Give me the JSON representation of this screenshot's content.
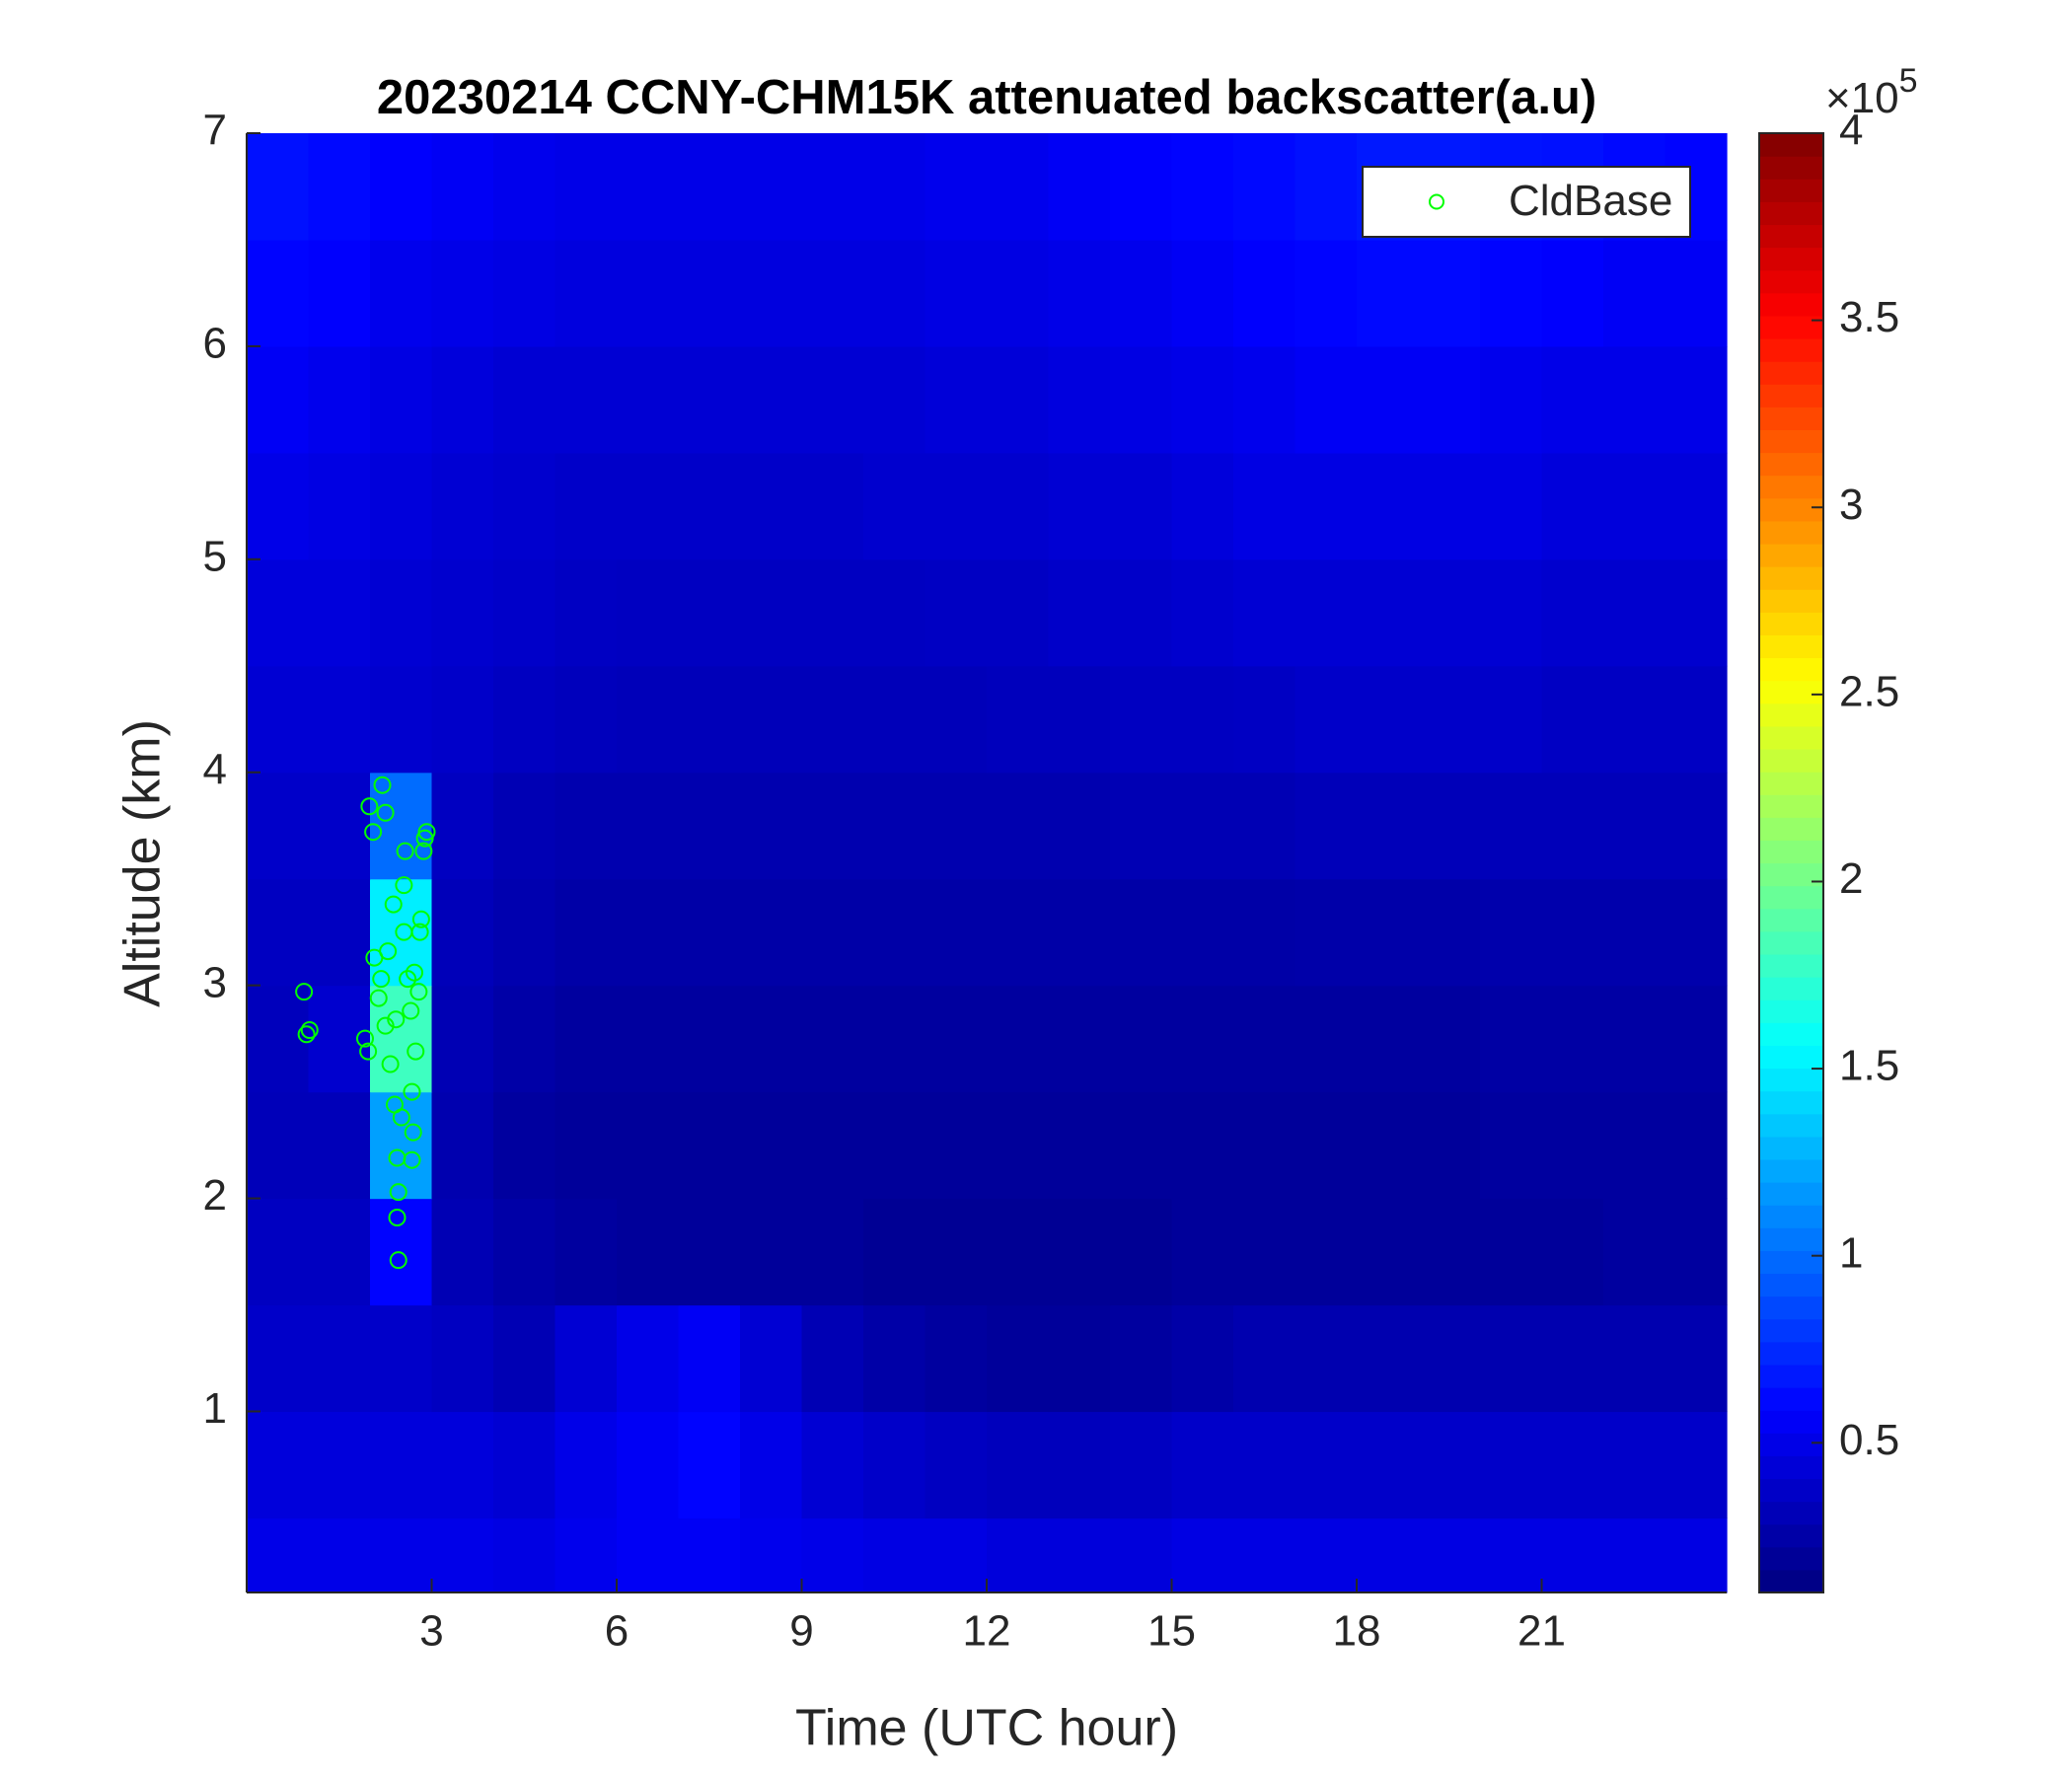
{
  "chart_data": {
    "type": "heatmap",
    "title": "20230214 CCNY-CHM15K attenuated backscatter(a.u)",
    "xlabel": "Time (UTC hour)",
    "ylabel": "Altitude (km)",
    "xlim": [
      0,
      24
    ],
    "ylim": [
      0.15,
      7
    ],
    "xticks": [
      3,
      6,
      9,
      12,
      15,
      18,
      21
    ],
    "yticks": [
      1,
      2,
      3,
      4,
      5,
      6,
      7
    ],
    "colormap": "jet",
    "clim": [
      0.1,
      4
    ],
    "cticks": [
      0.5,
      1,
      1.5,
      2,
      2.5,
      3,
      3.5,
      4
    ],
    "cscale": {
      "base": "×10",
      "exponent": "5"
    },
    "x_edges": [
      0,
      1,
      2,
      3,
      4,
      5,
      6,
      7,
      8,
      9,
      10,
      11,
      12,
      13,
      14,
      15,
      16,
      17,
      18,
      19,
      20,
      21,
      22,
      23,
      24
    ],
    "y_edges": [
      0.15,
      0.5,
      1,
      1.5,
      2,
      2.5,
      3,
      3.5,
      4,
      4.5,
      5,
      5.5,
      6,
      6.5,
      7
    ],
    "z": [
      [
        0.5,
        0.5,
        0.5,
        0.5,
        0.48,
        0.52,
        0.55,
        0.55,
        0.52,
        0.5,
        0.48,
        0.48,
        0.45,
        0.45,
        0.45,
        0.48,
        0.48,
        0.48,
        0.48,
        0.48,
        0.48,
        0.48,
        0.48,
        0.48
      ],
      [
        0.45,
        0.45,
        0.45,
        0.45,
        0.42,
        0.5,
        0.55,
        0.6,
        0.5,
        0.42,
        0.38,
        0.35,
        0.33,
        0.33,
        0.35,
        0.38,
        0.38,
        0.38,
        0.38,
        0.38,
        0.38,
        0.38,
        0.38,
        0.38
      ],
      [
        0.38,
        0.38,
        0.38,
        0.35,
        0.3,
        0.42,
        0.5,
        0.55,
        0.42,
        0.3,
        0.25,
        0.22,
        0.2,
        0.2,
        0.22,
        0.25,
        0.28,
        0.28,
        0.28,
        0.28,
        0.28,
        0.28,
        0.28,
        0.28
      ],
      [
        0.35,
        0.35,
        0.6,
        0.3,
        0.25,
        0.22,
        0.2,
        0.2,
        0.2,
        0.2,
        0.18,
        0.18,
        0.18,
        0.18,
        0.18,
        0.2,
        0.2,
        0.2,
        0.2,
        0.2,
        0.2,
        0.2,
        0.22,
        0.22
      ],
      [
        0.32,
        0.32,
        1.2,
        0.28,
        0.22,
        0.2,
        0.2,
        0.2,
        0.2,
        0.2,
        0.2,
        0.2,
        0.2,
        0.2,
        0.2,
        0.2,
        0.2,
        0.2,
        0.2,
        0.2,
        0.22,
        0.22,
        0.22,
        0.22
      ],
      [
        0.33,
        0.4,
        1.8,
        0.3,
        0.25,
        0.22,
        0.22,
        0.22,
        0.22,
        0.22,
        0.22,
        0.22,
        0.22,
        0.22,
        0.22,
        0.22,
        0.22,
        0.22,
        0.22,
        0.22,
        0.24,
        0.24,
        0.24,
        0.24
      ],
      [
        0.35,
        0.35,
        1.5,
        0.32,
        0.28,
        0.25,
        0.25,
        0.25,
        0.25,
        0.25,
        0.25,
        0.25,
        0.25,
        0.25,
        0.25,
        0.25,
        0.25,
        0.26,
        0.26,
        0.26,
        0.27,
        0.27,
        0.27,
        0.27
      ],
      [
        0.38,
        0.38,
        1.0,
        0.35,
        0.3,
        0.28,
        0.28,
        0.28,
        0.28,
        0.28,
        0.28,
        0.28,
        0.28,
        0.28,
        0.3,
        0.3,
        0.3,
        0.32,
        0.32,
        0.32,
        0.32,
        0.32,
        0.32,
        0.32
      ],
      [
        0.42,
        0.42,
        0.4,
        0.38,
        0.35,
        0.33,
        0.32,
        0.32,
        0.32,
        0.32,
        0.32,
        0.32,
        0.33,
        0.33,
        0.35,
        0.35,
        0.36,
        0.38,
        0.38,
        0.38,
        0.38,
        0.36,
        0.36,
        0.36
      ],
      [
        0.45,
        0.45,
        0.42,
        0.4,
        0.38,
        0.36,
        0.35,
        0.35,
        0.35,
        0.35,
        0.35,
        0.36,
        0.36,
        0.38,
        0.38,
        0.4,
        0.42,
        0.42,
        0.42,
        0.42,
        0.42,
        0.4,
        0.4,
        0.4
      ],
      [
        0.5,
        0.48,
        0.45,
        0.42,
        0.4,
        0.38,
        0.38,
        0.38,
        0.38,
        0.38,
        0.4,
        0.4,
        0.4,
        0.42,
        0.42,
        0.45,
        0.48,
        0.48,
        0.48,
        0.48,
        0.48,
        0.45,
        0.45,
        0.45
      ],
      [
        0.55,
        0.52,
        0.48,
        0.45,
        0.42,
        0.42,
        0.42,
        0.42,
        0.42,
        0.42,
        0.42,
        0.44,
        0.44,
        0.46,
        0.48,
        0.5,
        0.52,
        0.55,
        0.55,
        0.55,
        0.52,
        0.5,
        0.5,
        0.5
      ],
      [
        0.6,
        0.58,
        0.52,
        0.5,
        0.48,
        0.46,
        0.46,
        0.46,
        0.46,
        0.46,
        0.46,
        0.48,
        0.48,
        0.5,
        0.52,
        0.55,
        0.58,
        0.6,
        0.62,
        0.62,
        0.6,
        0.58,
        0.55,
        0.55
      ],
      [
        0.65,
        0.62,
        0.58,
        0.55,
        0.52,
        0.5,
        0.5,
        0.5,
        0.5,
        0.5,
        0.5,
        0.52,
        0.52,
        0.55,
        0.58,
        0.6,
        0.62,
        0.65,
        0.68,
        0.68,
        0.66,
        0.65,
        0.62,
        0.6
      ]
    ],
    "legend": "northeast",
    "series": [
      {
        "name": "CldBase",
        "type": "scatter",
        "color": "#00ff00",
        "x": [
          0.93,
          1.02,
          0.97,
          1.99,
          2.05,
          2.2,
          2.25,
          1.92,
          1.97,
          2.14,
          2.18,
          2.29,
          2.25,
          2.33,
          2.4,
          2.44,
          2.46,
          2.44,
          2.46,
          2.51,
          2.55,
          2.55,
          2.57,
          2.61,
          2.66,
          2.68,
          2.7,
          2.68,
          2.74,
          2.79,
          2.81,
          2.83,
          2.89,
          2.92,
          2.87,
          2.42,
          2.38,
          2.07,
          2.72
        ],
        "y": [
          2.97,
          2.79,
          2.77,
          3.84,
          3.72,
          3.94,
          3.81,
          2.75,
          2.69,
          2.94,
          3.03,
          3.16,
          2.81,
          2.63,
          2.44,
          2.19,
          2.03,
          1.91,
          1.71,
          2.38,
          3.25,
          3.47,
          3.63,
          3.03,
          2.88,
          2.5,
          2.31,
          2.18,
          2.69,
          2.97,
          3.25,
          3.31,
          3.69,
          3.72,
          3.63,
          2.84,
          3.38,
          3.13,
          3.06
        ]
      }
    ]
  }
}
